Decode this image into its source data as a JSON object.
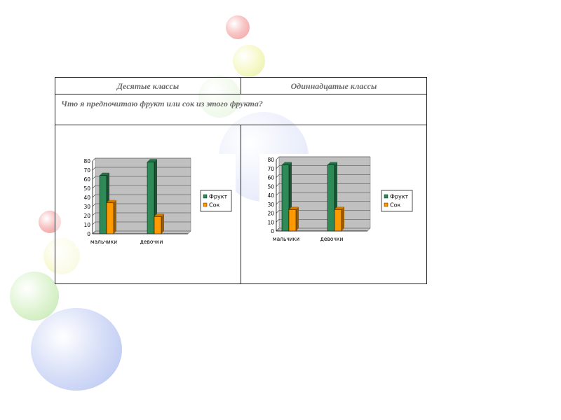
{
  "table": {
    "col1_header": "Десятые классы",
    "col2_header": "Одиннадцатые классы",
    "question": "Что я предпочитаю фрукт или сок из этого фрукта?"
  },
  "colors": {
    "fruit": "#2e8b57",
    "juice": "#ff9900",
    "plot_bg": "#c0c0c0"
  },
  "chart_data": [
    {
      "type": "bar",
      "categories": [
        "мальчики",
        "девочки"
      ],
      "series": [
        {
          "name": "Фрукт",
          "values": [
            64,
            79
          ]
        },
        {
          "name": "Сок",
          "values": [
            34,
            19
          ]
        }
      ],
      "ylim": [
        0,
        80
      ],
      "yticks": [
        0,
        10,
        20,
        30,
        40,
        50,
        60,
        70,
        80
      ],
      "grid": true,
      "legend": "right"
    },
    {
      "type": "bar",
      "categories": [
        "мальчики",
        "девочки"
      ],
      "series": [
        {
          "name": "Фрукт",
          "values": [
            74,
            74
          ]
        },
        {
          "name": "Сок",
          "values": [
            24,
            24
          ]
        }
      ],
      "ylim": [
        0,
        80
      ],
      "yticks": [
        0,
        10,
        20,
        30,
        40,
        50,
        60,
        70,
        80
      ],
      "grid": true,
      "legend": "right"
    }
  ]
}
